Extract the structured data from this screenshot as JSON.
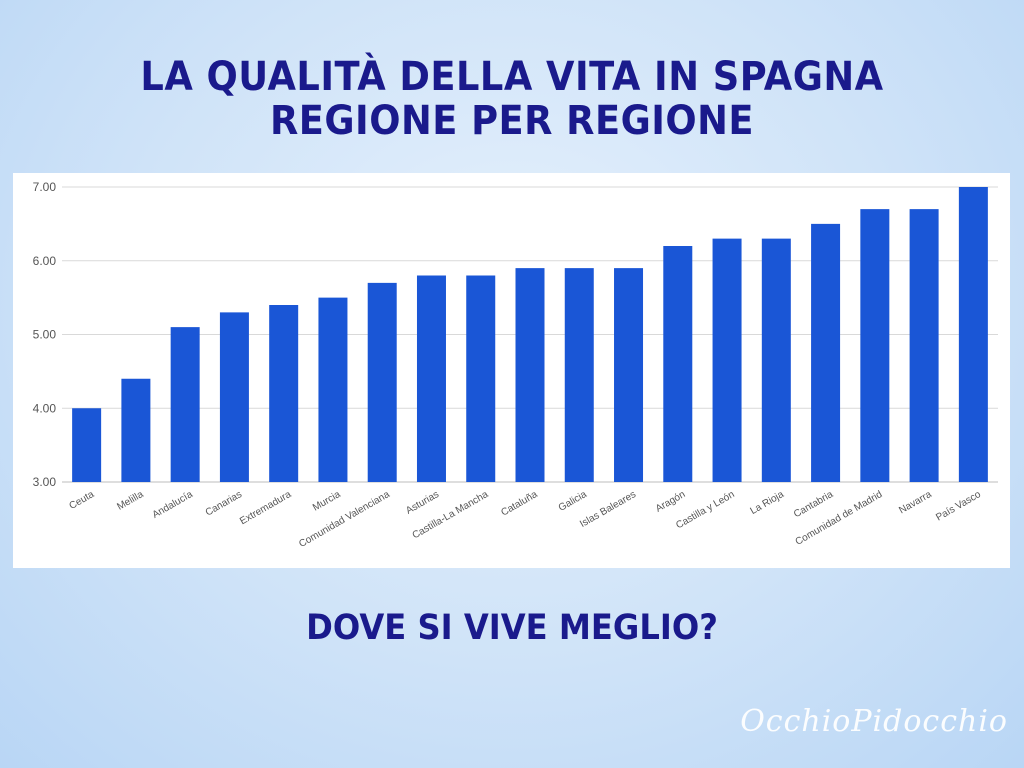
{
  "title_line1": "LA QUALITÀ DELLA VITA IN SPAGNA",
  "title_line2": "REGIONE PER REGIONE",
  "subtitle": "DOVE SI VIVE MEGLIO?",
  "watermark": "OcchioPidocchio",
  "colors": {
    "title": "#1a1a8c",
    "bar": "#1a56d6",
    "grid": "#d9d9d9",
    "tick_text": "#555555"
  },
  "chart_data": {
    "type": "bar",
    "title": "",
    "xlabel": "",
    "ylabel": "",
    "ylim": [
      3,
      7
    ],
    "yticks": [
      3,
      4,
      5,
      6,
      7
    ],
    "ytick_labels": [
      "3.00",
      "4.00",
      "5.00",
      "6.00",
      "7.00"
    ],
    "grid": true,
    "legend": "none",
    "categories": [
      "Ceuta",
      "Melilla",
      "Andalucía",
      "Canarias",
      "Extremadura",
      "Murcia",
      "Comunidad Valenciana",
      "Asturias",
      "Castilla-La Mancha",
      "Cataluña",
      "Galicia",
      "Islas Baleares",
      "Aragón",
      "Castilla y León",
      "La Rioja",
      "Cantabria",
      "Comunidad de Madrid",
      "Navarra",
      "País Vasco"
    ],
    "values": [
      4.0,
      4.4,
      5.1,
      5.3,
      5.4,
      5.5,
      5.7,
      5.8,
      5.8,
      5.9,
      5.9,
      5.9,
      6.2,
      6.3,
      6.3,
      6.5,
      6.7,
      6.7,
      7.0
    ]
  }
}
